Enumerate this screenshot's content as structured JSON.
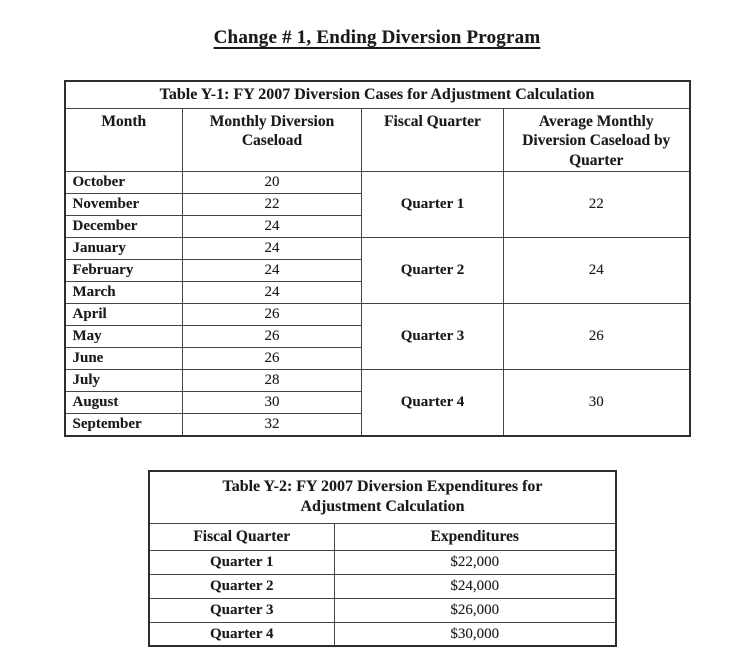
{
  "page": {
    "title": "Change # 1, Ending Diversion Program"
  },
  "colors": {
    "text": "#1a1a1a",
    "border": "#454545",
    "background": "#ffffff"
  },
  "table_y1": {
    "title": "Table Y-1: FY 2007 Diversion Cases for Adjustment Calculation",
    "headers": {
      "month": "Month",
      "caseload": "Monthly Diversion Caseload",
      "quarter": "Fiscal Quarter",
      "average": "Average Monthly Diversion Caseload by Quarter"
    },
    "rows": [
      {
        "month": "October",
        "caseload": "20"
      },
      {
        "month": "November",
        "caseload": "22"
      },
      {
        "month": "December",
        "caseload": "24"
      },
      {
        "month": "January",
        "caseload": "24"
      },
      {
        "month": "February",
        "caseload": "24"
      },
      {
        "month": "March",
        "caseload": "24"
      },
      {
        "month": "April",
        "caseload": "26"
      },
      {
        "month": "May",
        "caseload": "26"
      },
      {
        "month": "June",
        "caseload": "26"
      },
      {
        "month": "July",
        "caseload": "28"
      },
      {
        "month": "August",
        "caseload": "30"
      },
      {
        "month": "September",
        "caseload": "32"
      }
    ],
    "quarters": [
      {
        "label": "Quarter 1",
        "average": "22"
      },
      {
        "label": "Quarter 2",
        "average": "24"
      },
      {
        "label": "Quarter 3",
        "average": "26"
      },
      {
        "label": "Quarter 4",
        "average": "30"
      }
    ]
  },
  "table_y2": {
    "title": "Table Y-2: FY 2007 Diversion Expenditures for Adjustment Calculation",
    "headers": {
      "quarter": "Fiscal Quarter",
      "expenditures": "Expenditures"
    },
    "rows": [
      {
        "quarter": "Quarter 1",
        "expenditures": "$22,000"
      },
      {
        "quarter": "Quarter 2",
        "expenditures": "$24,000"
      },
      {
        "quarter": "Quarter 3",
        "expenditures": "$26,000"
      },
      {
        "quarter": "Quarter 4",
        "expenditures": "$30,000"
      }
    ]
  }
}
